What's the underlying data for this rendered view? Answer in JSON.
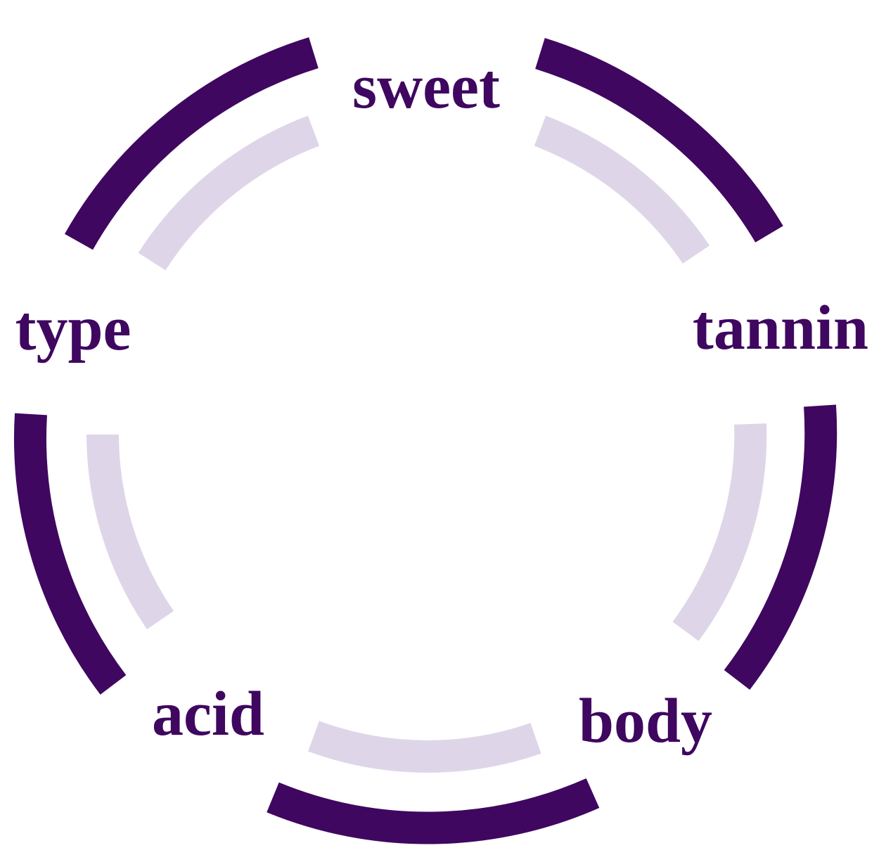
{
  "diagram": {
    "colors": {
      "outer_ring": "#3f0760",
      "inner_ring": "#ded6e8",
      "label": "#3f0760",
      "background": "#ffffff"
    },
    "labels": [
      {
        "key": "sweet",
        "text": "sweet"
      },
      {
        "key": "tannin",
        "text": "tannin"
      },
      {
        "key": "body",
        "text": "body"
      },
      {
        "key": "acid",
        "text": "acid"
      },
      {
        "key": "type",
        "text": "type"
      }
    ]
  }
}
